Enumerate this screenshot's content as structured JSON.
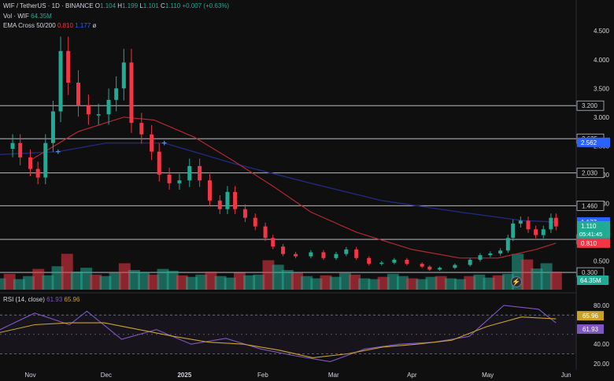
{
  "legend": {
    "symbol": "WIF / TetherUS · 1D · BINANCE",
    "open_label": "O",
    "open": "1.104",
    "high_label": "H",
    "high": "1.199",
    "low_label": "L",
    "low": "1.101",
    "close_label": "C",
    "close": "1.110",
    "change": "+0.007 (+0.63%)",
    "vol_label": "Vol · WIF",
    "vol": "64.35M",
    "ema_label": "EMA Cross 50/200",
    "ema50": "0.810",
    "ema200": "1.177",
    "ema_extra": "ø"
  },
  "colors": {
    "up": "#22ab94",
    "down": "#f23645",
    "ema50": "#b22833",
    "ema200": "#1e2a7a",
    "rsi": "#7e57c2",
    "rsi_ma": "#c9a227",
    "hline": "#d1d4dc",
    "text": "#d1d4dc"
  },
  "chart_data": [
    {
      "type": "candlestick",
      "title": "WIF / TetherUS · 1D · BINANCE",
      "ylim": [
        0,
        4.9
      ],
      "y_tick_labels": [
        "0.500",
        "1.000",
        "1.500",
        "2.000",
        "2.500",
        "3.000",
        "3.500",
        "4.000",
        "4.500"
      ],
      "x_tick_labels": [
        "Nov",
        "Dec",
        "2025",
        "Feb",
        "Mar",
        "Apr",
        "May",
        "Jun"
      ],
      "x_range": [
        "2024-10-20",
        "2025-06-05"
      ],
      "horizontal_levels": [
        {
          "value": 3.2,
          "label": "3.200"
        },
        {
          "value": 2.625,
          "label": "2.625"
        },
        {
          "value": 2.03,
          "label": "2.030"
        },
        {
          "value": 1.46,
          "label": "1.460"
        },
        {
          "value": 0.875,
          "label": "0.875"
        },
        {
          "value": 0.3,
          "label": "0.300"
        }
      ],
      "price_labels": [
        {
          "value": 2.562,
          "label": "2.562",
          "color": "#2962ff"
        },
        {
          "value": 1.177,
          "label": "1.177",
          "color": "#2962ff"
        },
        {
          "value": 1.11,
          "label": "1.110",
          "sub": "05:41:45",
          "color": "#22ab94"
        },
        {
          "value": 0.81,
          "label": "0.810",
          "color": "#f23645"
        }
      ],
      "cross_markers": [
        {
          "date": "2024-11-12",
          "value": 2.4
        },
        {
          "date": "2024-12-24",
          "value": 2.55
        }
      ],
      "close_path": [
        [
          "2024-10-20",
          2.45
        ],
        [
          "2024-10-25",
          2.55
        ],
        [
          "2024-10-28",
          2.3
        ],
        [
          "2024-11-01",
          2.1
        ],
        [
          "2024-11-04",
          1.95
        ],
        [
          "2024-11-07",
          2.55
        ],
        [
          "2024-11-10",
          3.1
        ],
        [
          "2024-11-13",
          4.15
        ],
        [
          "2024-11-16",
          3.6
        ],
        [
          "2024-11-20",
          3.2
        ],
        [
          "2024-11-24",
          3.05
        ],
        [
          "2024-11-28",
          3.05
        ],
        [
          "2024-12-02",
          3.3
        ],
        [
          "2024-12-05",
          3.5
        ],
        [
          "2024-12-08",
          3.95
        ],
        [
          "2024-12-11",
          2.9
        ],
        [
          "2024-12-15",
          2.7
        ],
        [
          "2024-12-19",
          2.4
        ],
        [
          "2024-12-22",
          2.0
        ],
        [
          "2024-12-26",
          1.85
        ],
        [
          "2024-12-30",
          1.9
        ],
        [
          "2025-01-03",
          2.15
        ],
        [
          "2025-01-07",
          1.9
        ],
        [
          "2025-01-11",
          1.55
        ],
        [
          "2025-01-15",
          1.4
        ],
        [
          "2025-01-18",
          1.7
        ],
        [
          "2025-01-21",
          1.4
        ],
        [
          "2025-01-25",
          1.25
        ],
        [
          "2025-01-29",
          1.1
        ],
        [
          "2025-02-02",
          0.9
        ],
        [
          "2025-02-05",
          0.75
        ],
        [
          "2025-02-09",
          0.62
        ],
        [
          "2025-02-14",
          0.58
        ],
        [
          "2025-02-20",
          0.65
        ],
        [
          "2025-02-25",
          0.55
        ],
        [
          "2025-03-02",
          0.62
        ],
        [
          "2025-03-06",
          0.7
        ],
        [
          "2025-03-10",
          0.55
        ],
        [
          "2025-03-15",
          0.45
        ],
        [
          "2025-03-20",
          0.47
        ],
        [
          "2025-03-25",
          0.52
        ],
        [
          "2025-03-30",
          0.45
        ],
        [
          "2025-04-05",
          0.4
        ],
        [
          "2025-04-08",
          0.35
        ],
        [
          "2025-04-12",
          0.38
        ],
        [
          "2025-04-18",
          0.43
        ],
        [
          "2025-04-24",
          0.52
        ],
        [
          "2025-04-28",
          0.6
        ],
        [
          "2025-05-02",
          0.63
        ],
        [
          "2025-05-06",
          0.68
        ],
        [
          "2025-05-09",
          0.9
        ],
        [
          "2025-05-11",
          1.15
        ],
        [
          "2025-05-14",
          1.2
        ],
        [
          "2025-05-17",
          1.05
        ],
        [
          "2025-05-20",
          0.95
        ],
        [
          "2025-05-23",
          1.05
        ],
        [
          "2025-05-26",
          1.25
        ],
        [
          "2025-05-28",
          1.1
        ]
      ],
      "ema50_path": [
        [
          "2024-11-01",
          2.25
        ],
        [
          "2024-11-20",
          2.75
        ],
        [
          "2024-12-08",
          3.0
        ],
        [
          "2024-12-20",
          2.95
        ],
        [
          "2025-01-05",
          2.65
        ],
        [
          "2025-01-20",
          2.25
        ],
        [
          "2025-02-05",
          1.8
        ],
        [
          "2025-02-20",
          1.35
        ],
        [
          "2025-03-10",
          1.0
        ],
        [
          "2025-04-01",
          0.7
        ],
        [
          "2025-04-20",
          0.55
        ],
        [
          "2025-05-05",
          0.55
        ],
        [
          "2025-05-20",
          0.7
        ],
        [
          "2025-05-28",
          0.81
        ]
      ],
      "ema200_path": [
        [
          "2024-10-20",
          2.35
        ],
        [
          "2024-11-12",
          2.4
        ],
        [
          "2024-12-01",
          2.55
        ],
        [
          "2024-12-24",
          2.55
        ],
        [
          "2025-01-20",
          2.2
        ],
        [
          "2025-02-20",
          1.85
        ],
        [
          "2025-03-20",
          1.55
        ],
        [
          "2025-04-20",
          1.35
        ],
        [
          "2025-05-15",
          1.2
        ],
        [
          "2025-05-28",
          1.177
        ]
      ]
    },
    {
      "type": "bar",
      "title": "Vol · WIF",
      "label": "64.35M",
      "values": [
        0.3,
        0.42,
        0.28,
        0.36,
        0.55,
        0.38,
        0.62,
        0.95,
        0.48,
        0.58,
        0.4,
        0.36,
        0.44,
        0.7,
        0.52,
        0.46,
        0.4,
        0.55,
        0.5,
        0.38,
        0.34,
        0.4,
        0.48,
        0.36,
        0.32,
        0.45,
        0.38,
        0.4,
        0.78,
        0.66,
        0.52,
        0.44,
        0.36,
        0.3,
        0.38,
        0.34,
        0.44,
        0.4,
        0.3,
        0.28,
        0.34,
        0.42,
        0.36,
        0.3,
        0.28,
        0.34,
        0.36,
        0.3,
        0.28,
        0.36,
        0.4,
        0.32,
        0.38,
        0.42,
        0.95,
        0.8,
        0.56,
        0.7,
        0.48
      ]
    },
    {
      "type": "line",
      "title": "RSI (14, close)",
      "series": [
        {
          "name": "61.93",
          "values_path": [
            [
              0,
              55
            ],
            [
              4,
              72
            ],
            [
              8,
              60
            ],
            [
              10,
              74
            ],
            [
              14,
              45
            ],
            [
              18,
              55
            ],
            [
              22,
              40
            ],
            [
              26,
              46
            ],
            [
              30,
              35
            ],
            [
              34,
              28
            ],
            [
              38,
              22
            ],
            [
              42,
              35
            ],
            [
              46,
              40
            ],
            [
              50,
              42
            ],
            [
              54,
              48
            ],
            [
              58,
              80
            ],
            [
              62,
              76
            ],
            [
              64,
              62
            ]
          ]
        },
        {
          "name": "65.96",
          "values_path": [
            [
              0,
              52
            ],
            [
              4,
              60
            ],
            [
              8,
              62
            ],
            [
              12,
              62
            ],
            [
              16,
              55
            ],
            [
              20,
              48
            ],
            [
              24,
              42
            ],
            [
              28,
              40
            ],
            [
              32,
              34
            ],
            [
              36,
              26
            ],
            [
              40,
              30
            ],
            [
              44,
              37
            ],
            [
              48,
              40
            ],
            [
              52,
              44
            ],
            [
              56,
              58
            ],
            [
              60,
              68
            ],
            [
              64,
              66
            ]
          ]
        }
      ],
      "ylim": [
        15,
        88
      ],
      "y_tick_labels": [
        "20.00",
        "40.00",
        "80.00"
      ],
      "levels": [
        30,
        70
      ],
      "value_labels": [
        "65.96",
        "61.93"
      ]
    }
  ]
}
